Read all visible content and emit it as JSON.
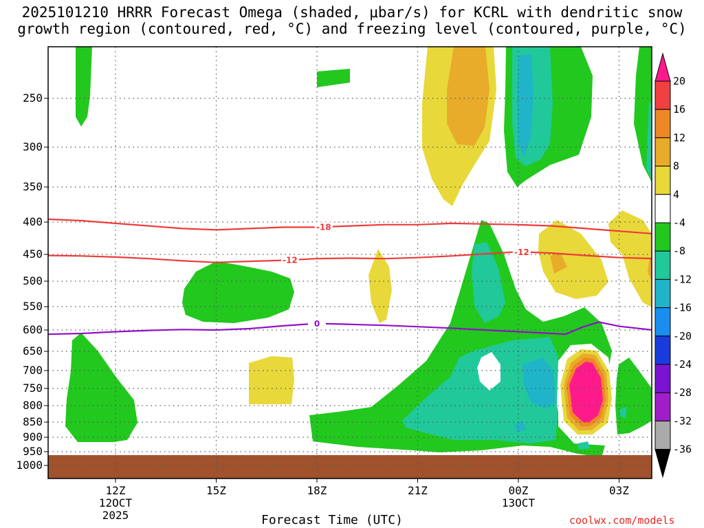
{
  "chart_data": {
    "type": "contour",
    "title_line1": "2025101210 HRRR Forecast Omega (shaded, μbar/s) for KCRL with dendritic snow",
    "title_line2": "growth region (contoured, red, °C) and freezing level (contoured, purple, °C)",
    "xlabel": "Forecast Time (UTC)",
    "credit": "coolwx.com/models",
    "y_ticks": [
      {
        "p": 250,
        "label": "250"
      },
      {
        "p": 300,
        "label": "300"
      },
      {
        "p": 350,
        "label": "350"
      },
      {
        "p": 400,
        "label": "400"
      },
      {
        "p": 450,
        "label": "450"
      },
      {
        "p": 500,
        "label": "500"
      },
      {
        "p": 550,
        "label": "550"
      },
      {
        "p": 600,
        "label": "600"
      },
      {
        "p": 650,
        "label": "650"
      },
      {
        "p": 700,
        "label": "700"
      },
      {
        "p": 750,
        "label": "750"
      },
      {
        "p": 800,
        "label": "800"
      },
      {
        "p": 850,
        "label": "850"
      },
      {
        "p": 900,
        "label": "900"
      },
      {
        "p": 950,
        "label": "950"
      },
      {
        "p": 1000,
        "label": "1000"
      }
    ],
    "x_ticks": [
      {
        "t": 12,
        "label": "12Z",
        "sub1": "12OCT",
        "sub2": "2025"
      },
      {
        "t": 15,
        "label": "15Z",
        "sub1": "",
        "sub2": ""
      },
      {
        "t": 18,
        "label": "18Z",
        "sub1": "",
        "sub2": ""
      },
      {
        "t": 21,
        "label": "21Z",
        "sub1": "",
        "sub2": ""
      },
      {
        "t": 24,
        "label": "00Z",
        "sub1": "13OCT",
        "sub2": ""
      },
      {
        "t": 27,
        "label": "03Z",
        "sub1": "",
        "sub2": ""
      }
    ],
    "x_range_hours": [
      10,
      28
    ],
    "colorbar": {
      "levels": [
        "20",
        "16",
        "12",
        "8",
        "4",
        "-4",
        "-8",
        "-12",
        "-16",
        "-20",
        "-24",
        "-28",
        "-32",
        "-36"
      ],
      "colors": [
        "#ff1a8c",
        "#f04040",
        "#ee8826",
        "#e8ac2a",
        "#e8d83a",
        "#ffffff",
        "#22c81e",
        "#20c89a",
        "#20b4c8",
        "#1a8ef0",
        "#1a3cdc",
        "#7a14d2",
        "#a01ec8",
        "#aaaaaa",
        "#000000"
      ]
    },
    "contours": [
      {
        "name": "-18 isotherm",
        "label": "-18",
        "color": "#ee3a3a",
        "points": [
          [
            10,
            396
          ],
          [
            11,
            398
          ],
          [
            12,
            402
          ],
          [
            13,
            406
          ],
          [
            14,
            410
          ],
          [
            15,
            412
          ],
          [
            16,
            410
          ],
          [
            17,
            408
          ],
          [
            18,
            408
          ],
          [
            19,
            406
          ],
          [
            20,
            404
          ],
          [
            21,
            404
          ],
          [
            22,
            402
          ],
          [
            23,
            403
          ],
          [
            24,
            404
          ],
          [
            25,
            406
          ],
          [
            26,
            410
          ],
          [
            27,
            414
          ],
          [
            28,
            418
          ]
        ]
      },
      {
        "name": "-12 isotherm",
        "label": "-12",
        "color": "#ee3a3a",
        "points": [
          [
            10,
            452
          ],
          [
            11,
            453
          ],
          [
            12,
            455
          ],
          [
            13,
            458
          ],
          [
            14,
            462
          ],
          [
            15,
            465
          ],
          [
            16,
            463
          ],
          [
            17,
            461
          ],
          [
            18,
            458
          ],
          [
            19,
            457
          ],
          [
            20,
            458
          ],
          [
            21,
            456
          ],
          [
            22,
            453
          ],
          [
            23,
            449
          ],
          [
            24,
            446
          ],
          [
            25,
            448
          ],
          [
            26,
            452
          ],
          [
            27,
            456
          ],
          [
            28,
            458
          ]
        ]
      },
      {
        "name": "0C freezing level",
        "label": "0",
        "color": "#9010c8",
        "points": [
          [
            10,
            610
          ],
          [
            11,
            608
          ],
          [
            12,
            604
          ],
          [
            13,
            601
          ],
          [
            14,
            599
          ],
          [
            15,
            600
          ],
          [
            16,
            597
          ],
          [
            17,
            591
          ],
          [
            18,
            586
          ],
          [
            19,
            588
          ],
          [
            20,
            590
          ],
          [
            21,
            593
          ],
          [
            22,
            596
          ],
          [
            23,
            600
          ],
          [
            24,
            604
          ],
          [
            25,
            608
          ],
          [
            25.4,
            610
          ],
          [
            25.9,
            594
          ],
          [
            26.4,
            583
          ],
          [
            27,
            592
          ],
          [
            28,
            600
          ]
        ]
      }
    ]
  }
}
